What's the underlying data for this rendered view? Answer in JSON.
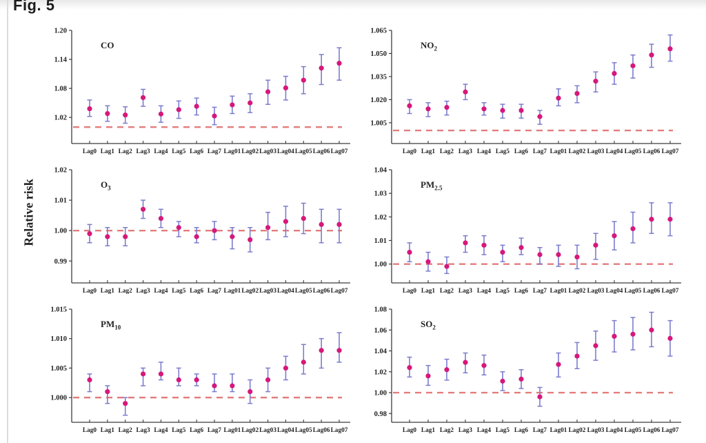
{
  "figure_label": "Fig. 5",
  "y_axis_label": "Relative risk",
  "colors": {
    "point": "#d6187a",
    "error_bar": "#7b7cce",
    "reference_line": "#e37c7c",
    "axis": "#3b3b3b",
    "text": "#222222"
  },
  "categories": [
    "Lag0",
    "Lag1",
    "Lag2",
    "Lag3",
    "Lag4",
    "Lag5",
    "Lag6",
    "Lag7",
    "Lag01",
    "Lag02",
    "Lag03",
    "Lag04",
    "Lag05",
    "Lag06",
    "Lag07"
  ],
  "chart_data": [
    {
      "type": "scatter",
      "id": "co",
      "title_main": "CO",
      "title_sub": "",
      "ytick_labels": [
        "1.20",
        "1.14",
        "1.08",
        "1.02"
      ],
      "ytick_values": [
        1.2,
        1.14,
        1.08,
        1.02
      ],
      "ylim": [
        0.966,
        1.2
      ],
      "ref_line": 1.0,
      "values": [
        1.038,
        1.028,
        1.025,
        1.061,
        1.027,
        1.036,
        1.043,
        1.023,
        1.046,
        1.05,
        1.073,
        1.081,
        1.097,
        1.122,
        1.132
      ],
      "ci_low": [
        1.022,
        1.012,
        1.008,
        1.043,
        1.01,
        1.018,
        1.025,
        1.005,
        1.028,
        1.03,
        1.047,
        1.056,
        1.069,
        1.088,
        1.097
      ],
      "ci_high": [
        1.056,
        1.044,
        1.042,
        1.078,
        1.044,
        1.054,
        1.06,
        1.041,
        1.064,
        1.069,
        1.097,
        1.105,
        1.125,
        1.15,
        1.164
      ]
    },
    {
      "type": "scatter",
      "id": "no2",
      "title_main": "NO",
      "title_sub": "2",
      "ytick_labels": [
        "1.065",
        "1.050",
        "1.035",
        "1.020",
        "1.005"
      ],
      "ytick_values": [
        1.065,
        1.05,
        1.035,
        1.02,
        1.005
      ],
      "ylim": [
        0.9915,
        1.065
      ],
      "ref_line": 1.0,
      "values": [
        1.016,
        1.014,
        1.015,
        1.025,
        1.014,
        1.013,
        1.013,
        1.009,
        1.021,
        1.024,
        1.032,
        1.037,
        1.042,
        1.049,
        1.053
      ],
      "ci_low": [
        1.011,
        1.009,
        1.01,
        1.02,
        1.01,
        1.008,
        1.008,
        1.004,
        1.016,
        1.018,
        1.025,
        1.03,
        1.034,
        1.041,
        1.045
      ],
      "ci_high": [
        1.02,
        1.018,
        1.019,
        1.03,
        1.018,
        1.017,
        1.017,
        1.013,
        1.027,
        1.029,
        1.038,
        1.044,
        1.049,
        1.056,
        1.062
      ]
    },
    {
      "type": "scatter",
      "id": "o3",
      "title_main": "O",
      "title_sub": "3",
      "ytick_labels": [
        "1.02",
        "1.01",
        "1.00",
        "0.99"
      ],
      "ytick_values": [
        1.02,
        1.01,
        1.0,
        0.99
      ],
      "ylim": [
        0.9828,
        1.02
      ],
      "ref_line": 1.0,
      "values": [
        0.999,
        0.998,
        0.998,
        1.007,
        1.004,
        1.001,
        0.998,
        1.0,
        0.998,
        0.997,
        1.001,
        1.003,
        1.004,
        1.002,
        1.002
      ],
      "ci_low": [
        0.996,
        0.995,
        0.995,
        1.004,
        1.001,
        0.998,
        0.996,
        0.997,
        0.994,
        0.993,
        0.997,
        0.998,
        0.999,
        0.996,
        0.996
      ],
      "ci_high": [
        1.002,
        1.001,
        1.001,
        1.01,
        1.007,
        1.003,
        1.001,
        1.003,
        1.001,
        1.001,
        1.006,
        1.008,
        1.009,
        1.007,
        1.007
      ]
    },
    {
      "type": "scatter",
      "id": "pm25",
      "title_main": "PM",
      "title_sub": "2.5",
      "ytick_labels": [
        "1.04",
        "1.03",
        "1.02",
        "1.01",
        "1.00"
      ],
      "ytick_values": [
        1.04,
        1.03,
        1.02,
        1.01,
        1.0
      ],
      "ylim": [
        0.992,
        1.04
      ],
      "ref_line": 1.0,
      "values": [
        1.005,
        1.001,
        0.999,
        1.009,
        1.008,
        1.005,
        1.007,
        1.004,
        1.004,
        1.003,
        1.008,
        1.012,
        1.015,
        1.019,
        1.019
      ],
      "ci_low": [
        1.001,
        0.997,
        0.996,
        1.005,
        1.004,
        1.001,
        1.004,
        1.0,
        0.999,
        0.998,
        1.002,
        1.006,
        1.009,
        1.013,
        1.012
      ],
      "ci_high": [
        1.009,
        1.005,
        1.003,
        1.012,
        1.012,
        1.008,
        1.011,
        1.007,
        1.008,
        1.008,
        1.013,
        1.018,
        1.022,
        1.026,
        1.026
      ]
    },
    {
      "type": "scatter",
      "id": "pm10",
      "title_main": "PM",
      "title_sub": "10",
      "ytick_labels": [
        "1.015",
        "1.010",
        "1.005",
        "1.000"
      ],
      "ytick_values": [
        1.015,
        1.01,
        1.005,
        1.0
      ],
      "ylim": [
        0.9958,
        1.015
      ],
      "ref_line": 1.0,
      "values": [
        1.003,
        1.001,
        0.999,
        1.004,
        1.004,
        1.003,
        1.003,
        1.002,
        1.002,
        1.001,
        1.003,
        1.005,
        1.006,
        1.008,
        1.008
      ],
      "ci_low": [
        1.001,
        0.999,
        0.997,
        1.002,
        1.003,
        1.002,
        1.002,
        1.001,
        1.001,
        0.999,
        1.001,
        1.003,
        1.004,
        1.005,
        1.006
      ],
      "ci_high": [
        1.004,
        1.002,
        1.0,
        1.005,
        1.006,
        1.005,
        1.004,
        1.004,
        1.004,
        1.003,
        1.005,
        1.007,
        1.009,
        1.01,
        1.011
      ]
    },
    {
      "type": "scatter",
      "id": "so2",
      "title_main": "SO",
      "title_sub": "2",
      "ytick_labels": [
        "1.08",
        "1.06",
        "1.04",
        "1.02",
        "1.00",
        "0.98"
      ],
      "ytick_values": [
        1.08,
        1.06,
        1.04,
        1.02,
        1.0,
        0.98
      ],
      "ylim": [
        0.9716,
        1.08
      ],
      "ref_line": 1.0,
      "values": [
        1.024,
        1.016,
        1.022,
        1.029,
        1.026,
        1.011,
        1.013,
        0.996,
        1.027,
        1.035,
        1.045,
        1.054,
        1.056,
        1.06,
        1.052
      ],
      "ci_low": [
        1.015,
        1.007,
        1.012,
        1.019,
        1.017,
        1.002,
        1.004,
        0.987,
        1.015,
        1.023,
        1.031,
        1.039,
        1.041,
        1.044,
        1.035
      ],
      "ci_high": [
        1.034,
        1.026,
        1.032,
        1.038,
        1.036,
        1.02,
        1.022,
        1.005,
        1.038,
        1.048,
        1.059,
        1.069,
        1.072,
        1.077,
        1.069
      ]
    }
  ]
}
